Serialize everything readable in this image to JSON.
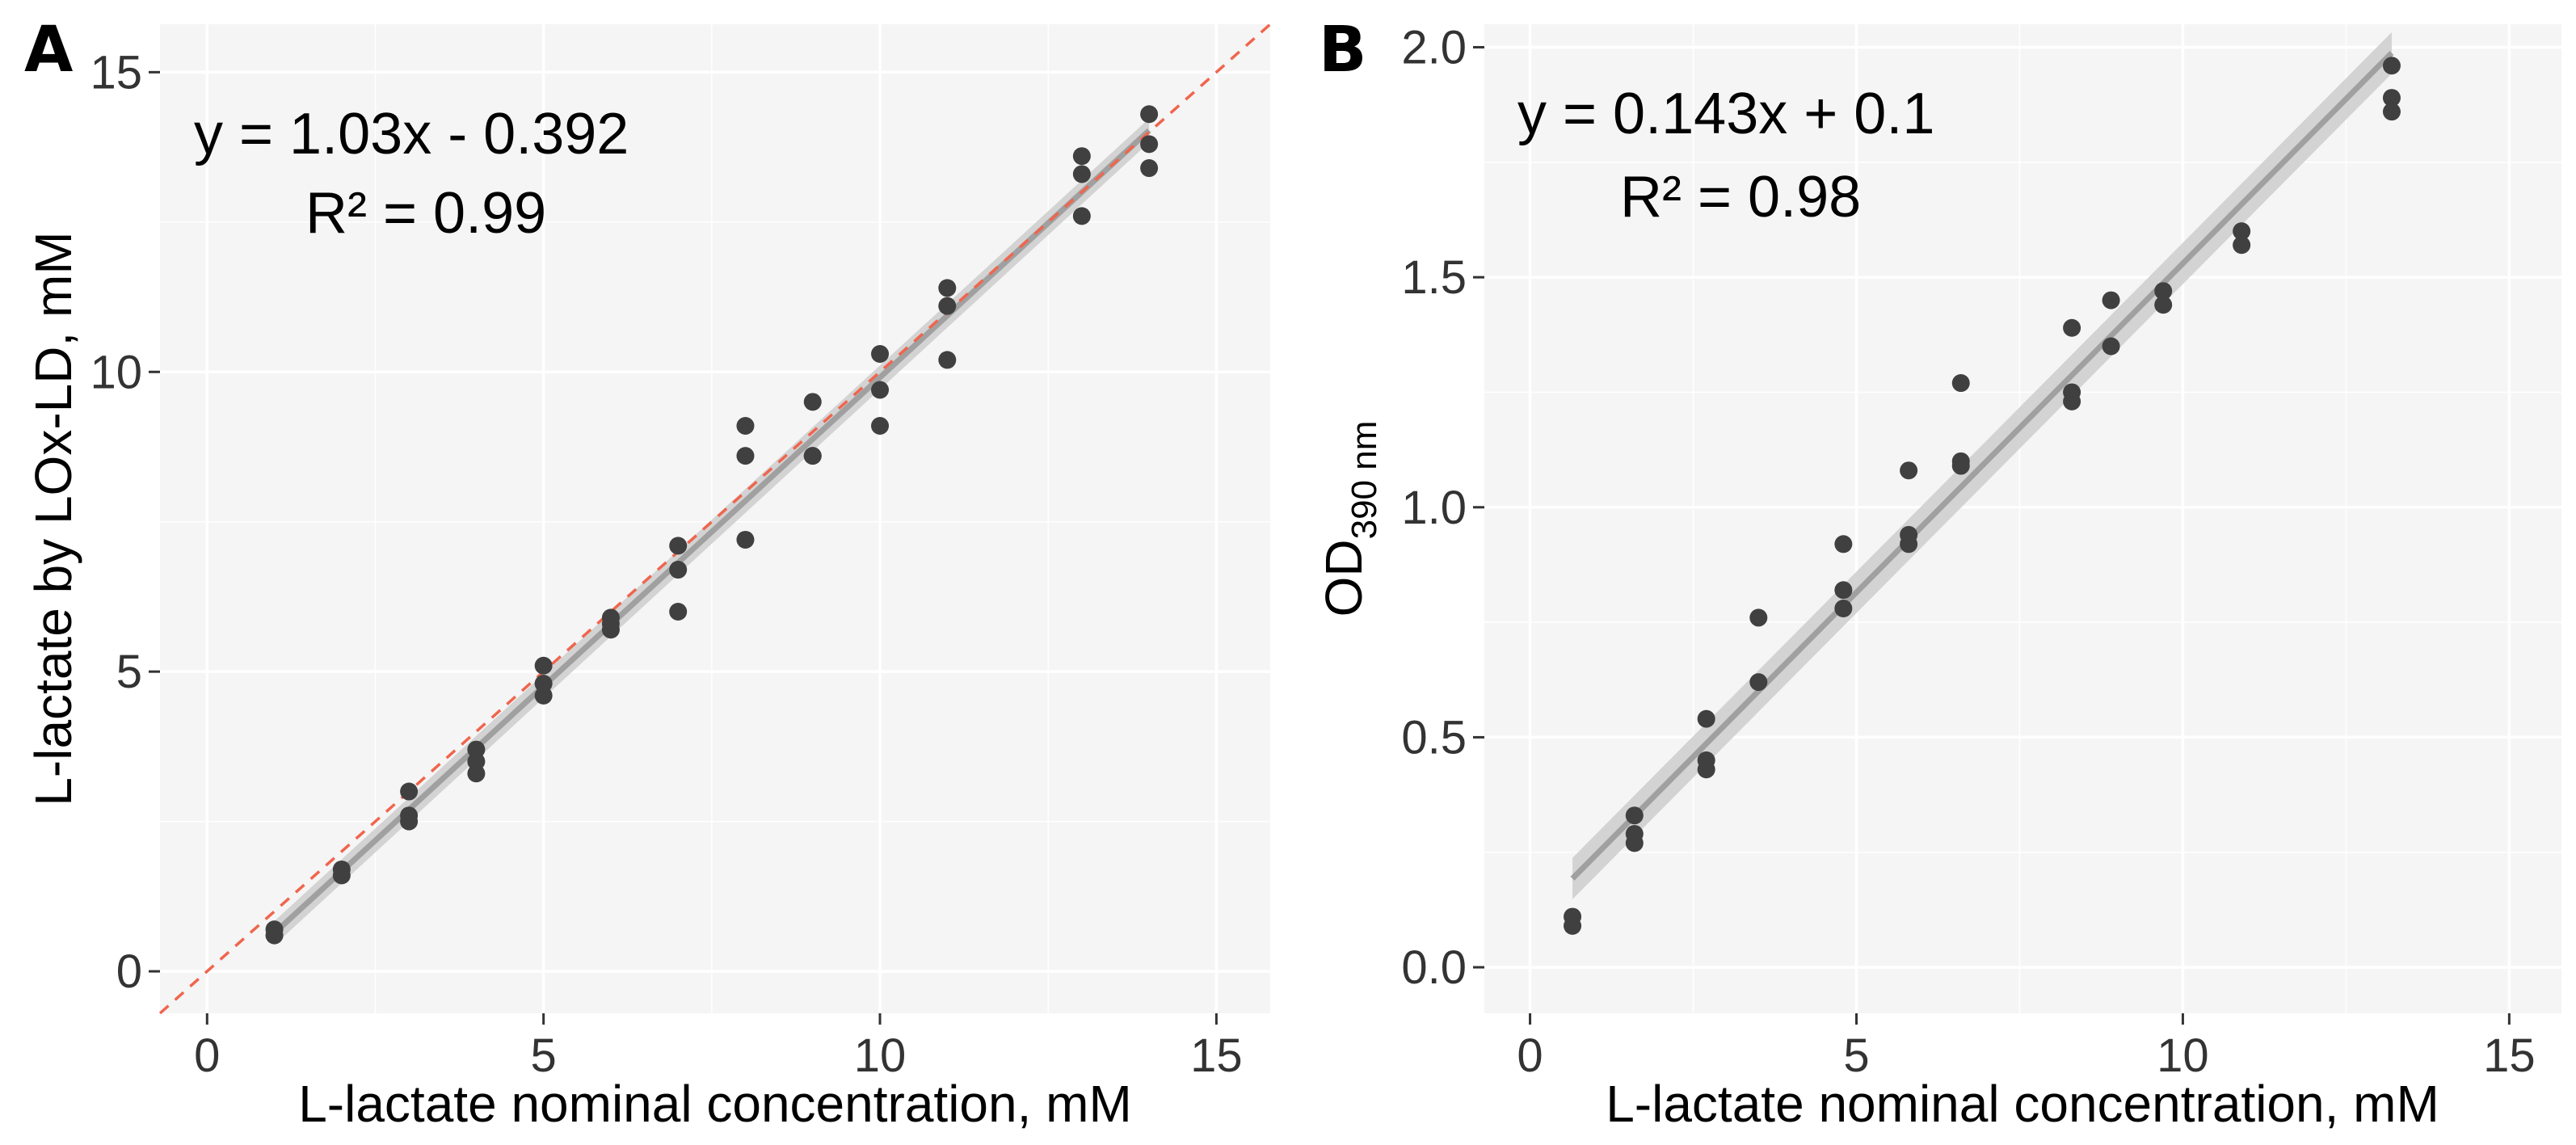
{
  "chart_data": [
    {
      "panel_label": "A",
      "type": "scatter",
      "xlabel": "L-lactate nominal concentration, mM",
      "ylabel": "L-lactate by LOx-LD, mM",
      "xlim": [
        -0.7,
        15.8
      ],
      "ylim": [
        -0.7,
        15.8
      ],
      "xticks": [
        0,
        5,
        10,
        15
      ],
      "yticks": [
        0,
        5,
        10,
        15
      ],
      "annotations": [
        "y = 1.03x - 0.392",
        "R² = 0.99"
      ],
      "fit": {
        "slope": 1.03,
        "intercept": -0.392,
        "x_range": [
          1,
          14
        ],
        "color": "#a0a0a0",
        "band_color": "#cccccc"
      },
      "reference_line": {
        "slope": 1,
        "intercept": 0,
        "style": "dashed",
        "color": "#f0654d"
      },
      "point_color": "#404040",
      "points": [
        [
          1,
          0.6
        ],
        [
          1,
          0.7
        ],
        [
          2,
          1.6
        ],
        [
          2,
          1.7
        ],
        [
          3,
          2.5
        ],
        [
          3,
          2.6
        ],
        [
          3,
          3.0
        ],
        [
          4,
          3.3
        ],
        [
          4,
          3.5
        ],
        [
          4,
          3.7
        ],
        [
          5,
          4.6
        ],
        [
          5,
          4.8
        ],
        [
          5,
          5.1
        ],
        [
          6,
          5.7
        ],
        [
          6,
          5.8
        ],
        [
          6,
          5.9
        ],
        [
          7,
          6.0
        ],
        [
          7,
          6.7
        ],
        [
          7,
          7.1
        ],
        [
          8,
          7.2
        ],
        [
          8,
          8.6
        ],
        [
          8,
          9.1
        ],
        [
          9,
          8.6
        ],
        [
          9,
          8.6
        ],
        [
          9,
          9.5
        ],
        [
          10,
          9.1
        ],
        [
          10,
          9.7
        ],
        [
          10,
          10.3
        ],
        [
          11,
          10.2
        ],
        [
          11,
          11.1
        ],
        [
          11,
          11.4
        ],
        [
          13,
          12.6
        ],
        [
          13,
          13.3
        ],
        [
          13,
          13.6
        ],
        [
          14,
          13.4
        ],
        [
          14,
          13.8
        ],
        [
          14,
          14.3
        ]
      ]
    },
    {
      "panel_label": "B",
      "type": "scatter",
      "xlabel": "L-lactate nominal concentration, mM",
      "ylabel": "OD",
      "ylabel_subscript": "390 nm",
      "xlim": [
        -0.7,
        15.8
      ],
      "ylim": [
        -0.1,
        2.05
      ],
      "xticks": [
        0,
        5,
        10,
        15
      ],
      "yticks": [
        0.0,
        0.5,
        1.0,
        1.5,
        2.0
      ],
      "ytick_labels": [
        "0.0",
        "0.5",
        "1.0",
        "1.5",
        "2.0"
      ],
      "annotations": [
        "y = 0.143x + 0.1",
        "R² = 0.98"
      ],
      "fit": {
        "slope": 0.143,
        "intercept": 0.1,
        "x_range": [
          0.65,
          13.2
        ],
        "color": "#a0a0a0",
        "band_color": "#cccccc"
      },
      "point_color": "#404040",
      "points": [
        [
          0.65,
          0.09
        ],
        [
          0.65,
          0.11
        ],
        [
          1.6,
          0.27
        ],
        [
          1.6,
          0.29
        ],
        [
          1.6,
          0.33
        ],
        [
          2.7,
          0.43
        ],
        [
          2.7,
          0.45
        ],
        [
          2.7,
          0.54
        ],
        [
          3.5,
          0.62
        ],
        [
          3.5,
          0.76
        ],
        [
          4.8,
          0.78
        ],
        [
          4.8,
          0.82
        ],
        [
          4.8,
          0.92
        ],
        [
          5.8,
          0.92
        ],
        [
          5.8,
          0.94
        ],
        [
          5.8,
          1.08
        ],
        [
          6.6,
          1.09
        ],
        [
          6.6,
          1.1
        ],
        [
          6.6,
          1.27
        ],
        [
          8.3,
          1.23
        ],
        [
          8.3,
          1.25
        ],
        [
          8.3,
          1.39
        ],
        [
          8.9,
          1.35
        ],
        [
          8.9,
          1.45
        ],
        [
          9.7,
          1.44
        ],
        [
          9.7,
          1.47
        ],
        [
          10.9,
          1.57
        ],
        [
          10.9,
          1.6
        ],
        [
          13.2,
          1.86
        ],
        [
          13.2,
          1.89
        ],
        [
          13.2,
          1.96
        ]
      ]
    }
  ]
}
